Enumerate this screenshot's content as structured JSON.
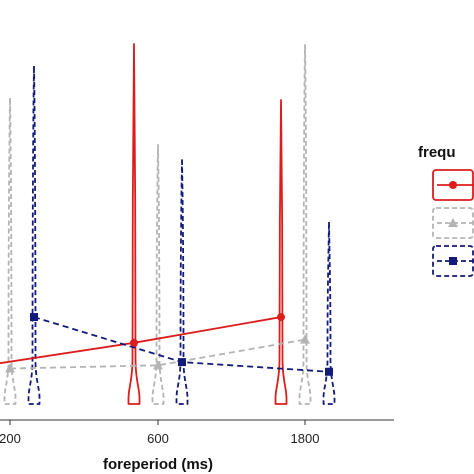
{
  "chart_data": {
    "type": "line",
    "title": "",
    "xlabel": "foreperiod (ms)",
    "ylabel": "",
    "x_ticks": [
      "200",
      "600",
      "1800"
    ],
    "legend_title": "frequ",
    "legend_position": "right",
    "grid": false,
    "series": [
      {
        "color": "#dd1c1c",
        "line": "solid",
        "marker": "circle",
        "x": [
          "200",
          "600",
          "1800"
        ],
        "y": [
          0.17,
          0.24,
          0.32
        ]
      },
      {
        "color": "#b4b4b4",
        "line": "dashed",
        "marker": "triangle",
        "x": [
          "200",
          "600",
          "1800"
        ],
        "y": [
          0.16,
          0.17,
          0.25
        ]
      },
      {
        "color": "#121a7a",
        "line": "dashed",
        "marker": "square",
        "x": [
          "200",
          "600",
          "1800"
        ],
        "y": [
          0.32,
          0.18,
          0.15
        ]
      }
    ]
  }
}
